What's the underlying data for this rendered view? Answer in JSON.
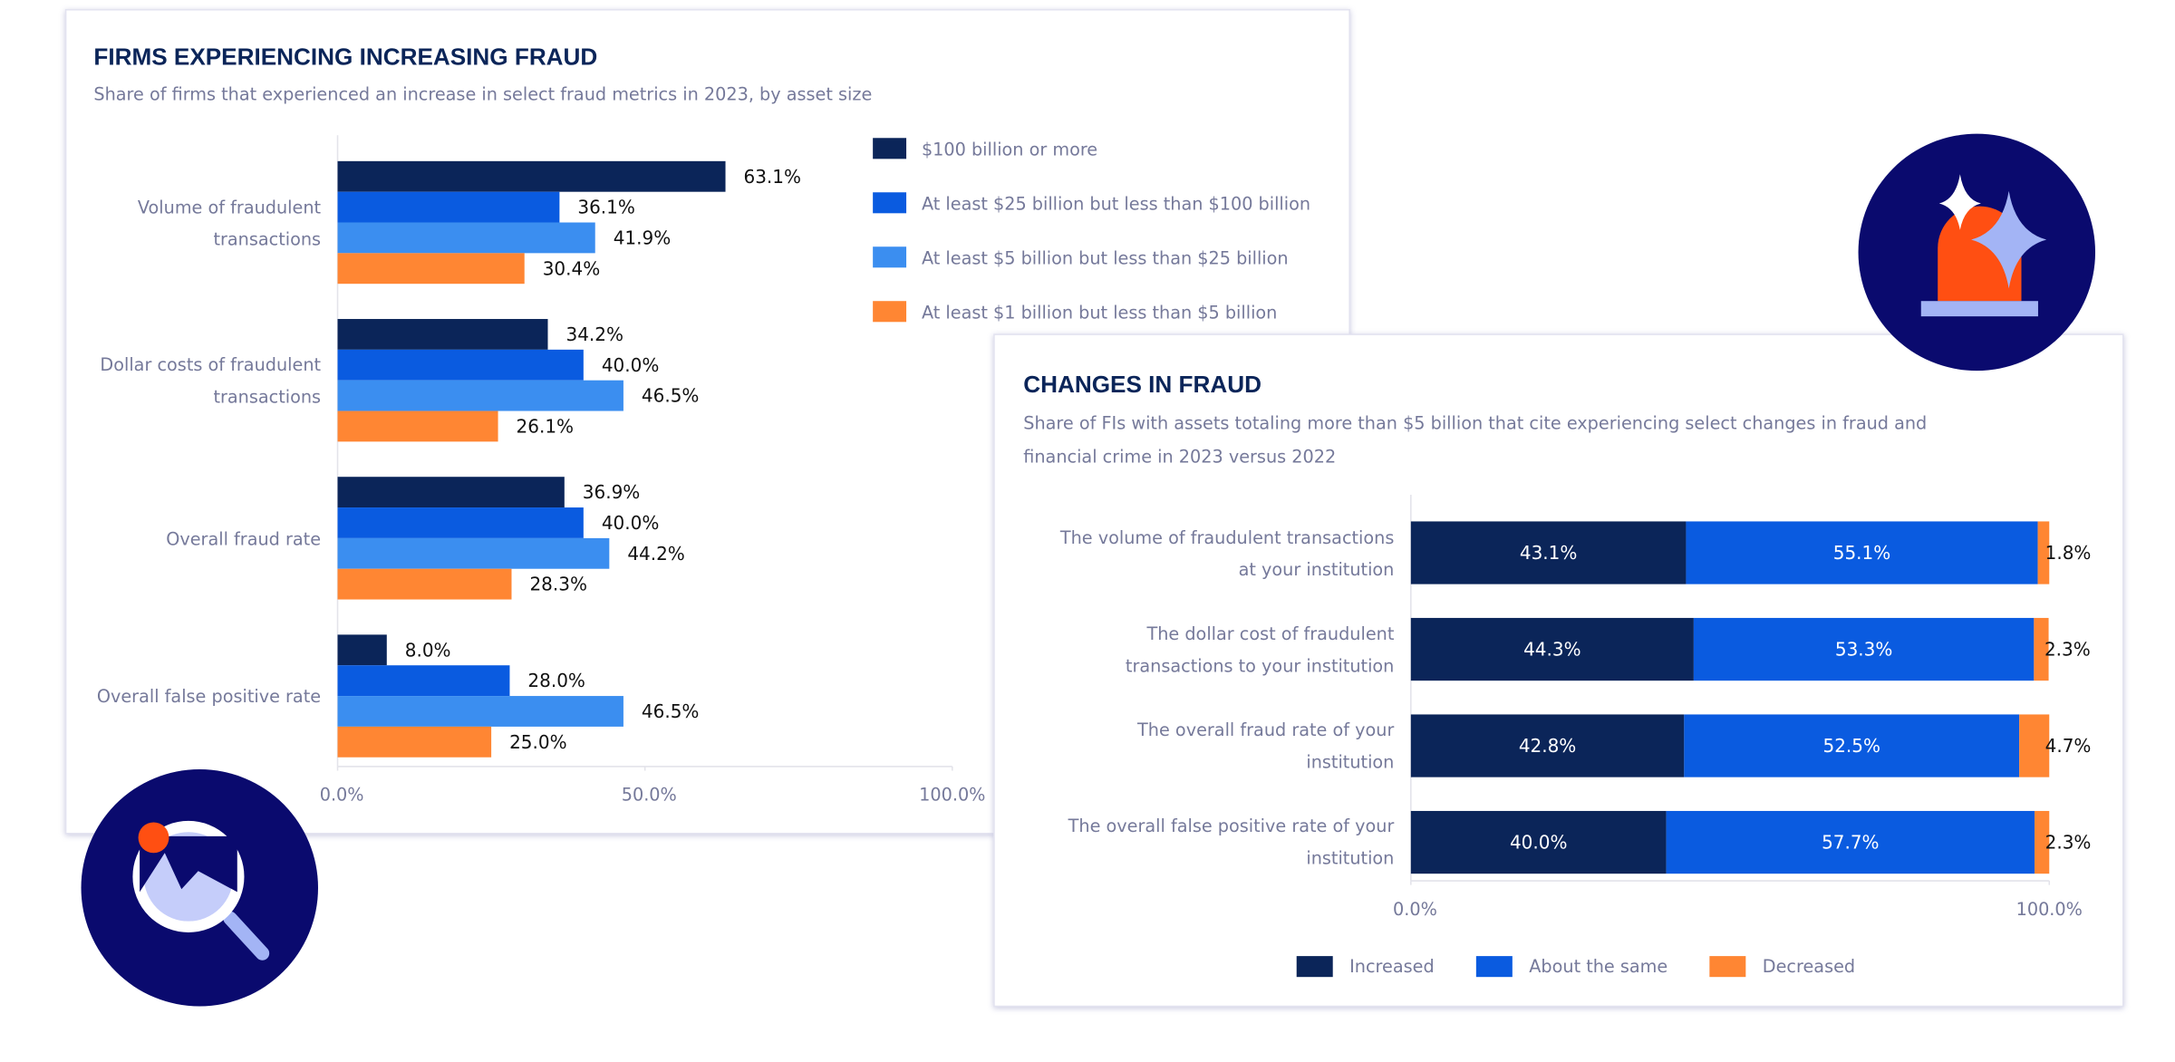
{
  "chart_data": [
    {
      "type": "bar",
      "orientation": "horizontal",
      "title": "FIRMS EXPERIENCING INCREASING FRAUD",
      "subtitle": "Share of firms that experienced an increase in select fraud metrics in 2023, by asset size",
      "categories": [
        "Volume of fraudulent transactions",
        "Dollar costs of fraudulent transactions",
        "Overall fraud rate",
        "Overall false positive rate"
      ],
      "series": [
        {
          "name": "$100 billion or more",
          "color": "#0b2559",
          "values": [
            63.1,
            34.2,
            36.9,
            8.0
          ],
          "value_labels": [
            "63.1%",
            "34.2%",
            "36.9%",
            "8.0%"
          ]
        },
        {
          "name": "At least $25 billion but less than $100 billion",
          "color": "#0a5be0",
          "values": [
            36.1,
            40.0,
            40.0,
            28.0
          ],
          "value_labels": [
            "36.1%",
            "40.0%",
            "40.0%",
            "28.0%"
          ]
        },
        {
          "name": "At least $5 billion but less than $25 billion",
          "color": "#3b8ef0",
          "values": [
            41.9,
            46.5,
            44.2,
            46.5
          ],
          "value_labels": [
            "41.9%",
            "46.5%",
            "44.2%",
            "46.5%"
          ]
        },
        {
          "name": "At least $1 billion but less than $5 billion",
          "color": "#ff8633",
          "values": [
            30.4,
            26.1,
            28.3,
            25.0
          ],
          "value_labels": [
            "30.4%",
            "26.1%",
            "28.3%",
            "25.0%"
          ]
        }
      ],
      "xlim": [
        0,
        100
      ],
      "xticks": [
        {
          "value": 0,
          "label": "0.0%"
        },
        {
          "value": 50,
          "label": "50.0%"
        },
        {
          "value": 100,
          "label": "100.0%"
        }
      ],
      "grid": false,
      "legend": "right"
    },
    {
      "type": "stacked_bar",
      "orientation": "horizontal",
      "title": "CHANGES IN FRAUD",
      "subtitle": "Share of FIs with assets totaling more than $5 billion that cite experiencing select changes in fraud and financial crime in 2023 versus 2022",
      "categories": [
        "The volume of fraudulent transactions at your institution",
        "The dollar cost of fraudulent transactions to your institution",
        "The overall fraud rate of your institution",
        "The overall false positive rate of your institution"
      ],
      "series": [
        {
          "name": "Increased",
          "color": "#0b2559",
          "values": [
            43.1,
            44.3,
            42.8,
            40.0
          ],
          "value_labels": [
            "43.1%",
            "44.3%",
            "42.8%",
            "40.0%"
          ]
        },
        {
          "name": "About the same",
          "color": "#0a5be0",
          "values": [
            55.1,
            53.3,
            52.5,
            57.7
          ],
          "value_labels": [
            "55.1%",
            "53.3%",
            "52.5%",
            "57.7%"
          ]
        },
        {
          "name": "Decreased",
          "color": "#ff8633",
          "values": [
            1.8,
            2.3,
            4.7,
            2.3
          ],
          "value_labels": [
            "1.8%",
            "2.3%",
            "4.7%",
            "2.3%"
          ]
        }
      ],
      "xlim": [
        0,
        100
      ],
      "xticks": [
        {
          "value": 0,
          "label": "0.0%"
        },
        {
          "value": 100,
          "label": "100.0%"
        }
      ],
      "grid": false,
      "legend": "bottom"
    }
  ]
}
